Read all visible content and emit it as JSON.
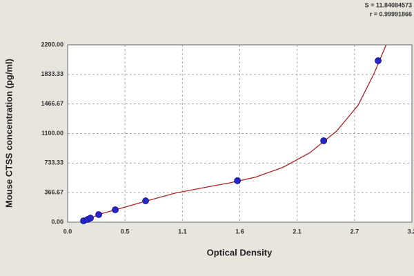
{
  "chart_data": {
    "type": "scatter",
    "annotations": [
      "S = 11.84084573",
      "r = 0.99991866"
    ],
    "xlabel": "Optical Density",
    "ylabel": "Mouse CTSS concentration (pg/ml)",
    "xlim": [
      0,
      3.2
    ],
    "xticks": [
      {
        "value": 0,
        "label": "0.0"
      },
      {
        "value": 0.5333,
        "label": "0.5"
      },
      {
        "value": 1.0667,
        "label": "1.1"
      },
      1.6,
      {
        "value": 2.1333,
        "label": "2.1"
      },
      {
        "value": 2.6667,
        "label": "2.7"
      },
      3.2
    ],
    "ylim": [
      0,
      2200
    ],
    "yticks": [
      {
        "value": 0,
        "label": "0.00"
      },
      {
        "value": 366.67,
        "label": "366.67"
      },
      {
        "value": 733.33,
        "label": "733.33"
      },
      {
        "value": 1100,
        "label": "1100.00"
      },
      {
        "value": 1466.67,
        "label": "1466.67"
      },
      {
        "value": 1833.33,
        "label": "1833.33"
      },
      {
        "value": 2200,
        "label": "2200.00"
      }
    ],
    "grid": true,
    "points": {
      "color": "#2626c8",
      "x": [
        0.148,
        0.186,
        0.212,
        0.289,
        0.443,
        0.725,
        1.578,
        2.38,
        2.886
      ],
      "values": [
        17,
        34,
        51,
        94,
        154,
        265,
        514,
        1010,
        2003
      ]
    },
    "curve": {
      "color": "#a52424",
      "x": [
        0.13,
        0.3,
        0.5,
        0.75,
        1.0,
        1.25,
        1.5,
        1.75,
        2.0,
        2.25,
        2.5,
        2.7,
        2.85,
        2.96
      ],
      "values": [
        0,
        100,
        175,
        270,
        360,
        425,
        485,
        560,
        680,
        860,
        1130,
        1450,
        1850,
        2200
      ]
    }
  }
}
